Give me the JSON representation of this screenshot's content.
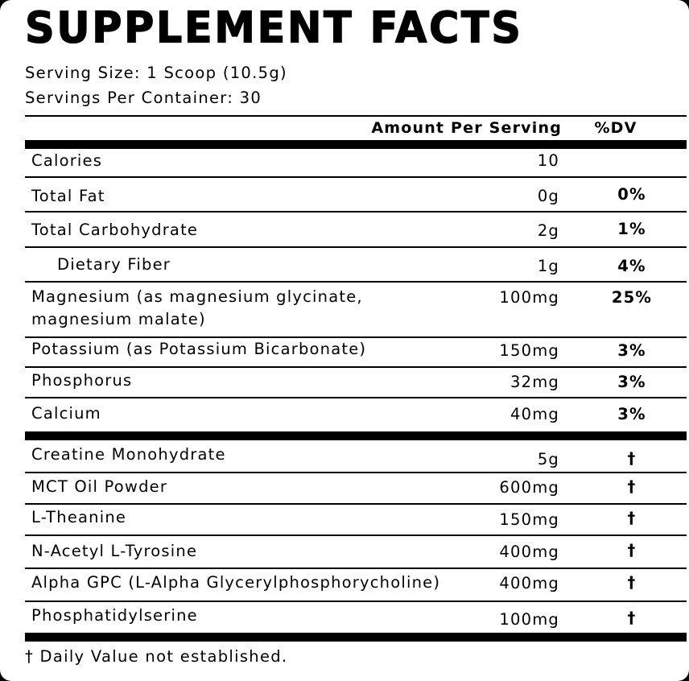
{
  "title": "SUPPLEMENT FACTS",
  "serving_size": "Serving Size: 1 Scoop (10.5g)",
  "servings_per_container": "Servings Per Container: 30",
  "header": {
    "amount": "Amount Per Serving",
    "dv": "%DV"
  },
  "nutrients": [
    {
      "name": "Calories",
      "amount": "10",
      "dv": ""
    },
    {
      "name": "Total Fat",
      "amount": "0g",
      "dv": "0%"
    },
    {
      "name": "Total Carbohydrate",
      "amount": "2g",
      "dv": "1%"
    },
    {
      "name": "Dietary Fiber",
      "amount": "1g",
      "dv": "4%"
    },
    {
      "name_line1": "Magnesium (as magnesium glycinate,",
      "name_line2": "magnesium malate)",
      "amount": "100mg",
      "dv": "25%"
    },
    {
      "name": "Potassium (as Potassium Bicarbonate)",
      "amount": "150mg",
      "dv": "3%"
    },
    {
      "name": "Phosphorus",
      "amount": "32mg",
      "dv": "3%"
    },
    {
      "name": "Calcium",
      "amount": "40mg",
      "dv": "3%"
    }
  ],
  "ingredients": [
    {
      "name": "Creatine Monohydrate",
      "amount": "5g",
      "dv": "†"
    },
    {
      "name": "MCT Oil Powder",
      "amount": "600mg",
      "dv": "†"
    },
    {
      "name": "L-Theanine",
      "amount": "150mg",
      "dv": "†"
    },
    {
      "name": "N-Acetyl L-Tyrosine",
      "amount": "400mg",
      "dv": "†"
    },
    {
      "name": "Alpha GPC (L-Alpha Glycerylphosphorycholine)",
      "amount": "400mg",
      "dv": "†"
    },
    {
      "name": "Phosphatidylserine",
      "amount": "100mg",
      "dv": "†"
    }
  ],
  "footnote": "† Daily Value not established."
}
